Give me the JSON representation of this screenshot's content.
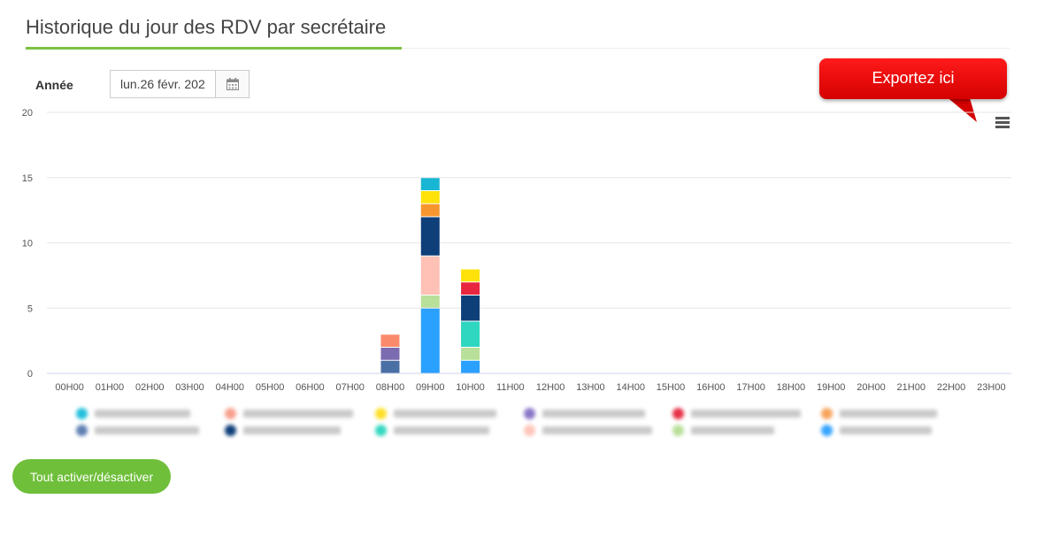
{
  "header": {
    "title": "Historique du jour des RDV par secrétaire"
  },
  "filter": {
    "label": "Année",
    "date_value": "lun.26 févr. 202",
    "calendar_icon": "calendar-icon"
  },
  "callout": {
    "text": "Exportez ici"
  },
  "menu": {
    "icon": "hamburger-menu-icon"
  },
  "toggle_button": {
    "label": "Tout activer/désactiver"
  },
  "chart_data": {
    "type": "bar",
    "stacked": true,
    "ylim": [
      0,
      20
    ],
    "yticks": [
      0,
      5,
      10,
      15,
      20
    ],
    "grid": true,
    "legend_position": "bottom",
    "categories": [
      "00H00",
      "01H00",
      "02H00",
      "03H00",
      "04H00",
      "05H00",
      "06H00",
      "07H00",
      "08H00",
      "09H00",
      "10H00",
      "11H00",
      "12H00",
      "13H00",
      "14H00",
      "15H00",
      "16H00",
      "17H00",
      "18H00",
      "19H00",
      "20H00",
      "21H00",
      "22H00",
      "23H00"
    ],
    "series": [
      {
        "color": "#4a6fa5",
        "values": [
          0,
          0,
          0,
          0,
          0,
          0,
          0,
          0,
          1,
          0,
          0,
          0,
          0,
          0,
          0,
          0,
          0,
          0,
          0,
          0,
          0,
          0,
          0,
          0
        ]
      },
      {
        "color": "#7b6bb0",
        "values": [
          0,
          0,
          0,
          0,
          0,
          0,
          0,
          0,
          1,
          0,
          0,
          0,
          0,
          0,
          0,
          0,
          0,
          0,
          0,
          0,
          0,
          0,
          0,
          0
        ]
      },
      {
        "color": "#fa8a6c",
        "values": [
          0,
          0,
          0,
          0,
          0,
          0,
          0,
          0,
          1,
          0,
          0,
          0,
          0,
          0,
          0,
          0,
          0,
          0,
          0,
          0,
          0,
          0,
          0,
          0
        ]
      },
      {
        "color": "#2aa0ff",
        "values": [
          0,
          0,
          0,
          0,
          0,
          0,
          0,
          0,
          0,
          5,
          1,
          0,
          0,
          0,
          0,
          0,
          0,
          0,
          0,
          0,
          0,
          0,
          0,
          0
        ]
      },
      {
        "color": "#b9e09a",
        "values": [
          0,
          0,
          0,
          0,
          0,
          0,
          0,
          0,
          0,
          1,
          1,
          0,
          0,
          0,
          0,
          0,
          0,
          0,
          0,
          0,
          0,
          0,
          0,
          0
        ]
      },
      {
        "color": "#2fd6c0",
        "values": [
          0,
          0,
          0,
          0,
          0,
          0,
          0,
          0,
          0,
          0,
          2,
          0,
          0,
          0,
          0,
          0,
          0,
          0,
          0,
          0,
          0,
          0,
          0,
          0
        ]
      },
      {
        "color": "#ffc0b5",
        "values": [
          0,
          0,
          0,
          0,
          0,
          0,
          0,
          0,
          0,
          3,
          0,
          0,
          0,
          0,
          0,
          0,
          0,
          0,
          0,
          0,
          0,
          0,
          0,
          0
        ]
      },
      {
        "color": "#0f3f78",
        "values": [
          0,
          0,
          0,
          0,
          0,
          0,
          0,
          0,
          0,
          3,
          2,
          0,
          0,
          0,
          0,
          0,
          0,
          0,
          0,
          0,
          0,
          0,
          0,
          0
        ]
      },
      {
        "color": "#e8263f",
        "values": [
          0,
          0,
          0,
          0,
          0,
          0,
          0,
          0,
          0,
          0,
          1,
          0,
          0,
          0,
          0,
          0,
          0,
          0,
          0,
          0,
          0,
          0,
          0,
          0
        ]
      },
      {
        "color": "#f7962f",
        "values": [
          0,
          0,
          0,
          0,
          0,
          0,
          0,
          0,
          0,
          1,
          0,
          0,
          0,
          0,
          0,
          0,
          0,
          0,
          0,
          0,
          0,
          0,
          0,
          0
        ]
      },
      {
        "color": "#ffe20a",
        "values": [
          0,
          0,
          0,
          0,
          0,
          0,
          0,
          0,
          0,
          1,
          1,
          0,
          0,
          0,
          0,
          0,
          0,
          0,
          0,
          0,
          0,
          0,
          0,
          0
        ]
      },
      {
        "color": "#19b6d4",
        "values": [
          0,
          0,
          0,
          0,
          0,
          0,
          0,
          0,
          0,
          1,
          0,
          0,
          0,
          0,
          0,
          0,
          0,
          0,
          0,
          0,
          0,
          0,
          0,
          0
        ]
      }
    ],
    "legend": [
      {
        "color": "#23c0dc",
        "width": 108
      },
      {
        "color": "#f8a18f",
        "width": 124
      },
      {
        "color": "#ffdf27",
        "width": 116
      },
      {
        "color": "#8b77c8",
        "width": 116
      },
      {
        "color": "#e63045",
        "width": 124
      },
      {
        "color": "#f7a35c",
        "width": 110
      },
      {
        "color": "#5f7fb3",
        "width": 118
      },
      {
        "color": "#0f3f78",
        "width": 110
      },
      {
        "color": "#34d8c0",
        "width": 108
      },
      {
        "color": "#ffc6bb",
        "width": 124
      },
      {
        "color": "#b9e09a",
        "width": 94
      },
      {
        "color": "#36a4ff",
        "width": 104
      }
    ]
  }
}
